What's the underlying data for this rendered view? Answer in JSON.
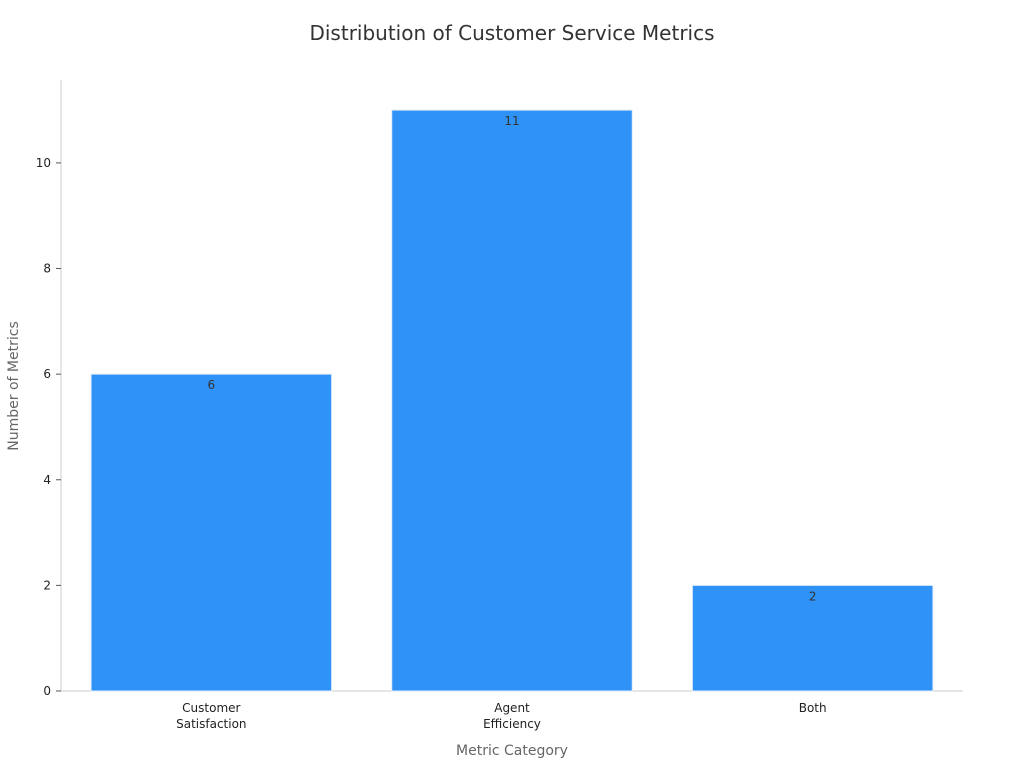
{
  "chart_data": {
    "type": "bar",
    "title": "Distribution of Customer Service Metrics",
    "x_label": "Metric Category",
    "y_label": "Number of Metrics",
    "categories": [
      "Customer Satisfaction",
      "Agent Efficiency",
      "Both"
    ],
    "values": [
      6,
      11,
      2
    ],
    "color": "#2f92f7",
    "ylim": [
      0,
      11.57
    ],
    "yticks": [
      0,
      2,
      4,
      6,
      8,
      10
    ],
    "grid": false
  }
}
